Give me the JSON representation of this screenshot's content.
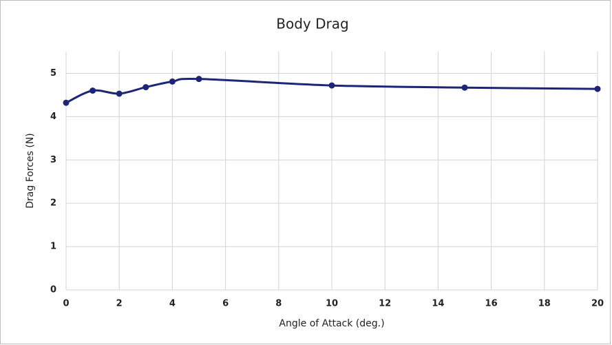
{
  "chart_data": {
    "type": "scatter",
    "title": "Body Drag",
    "x_label": "Angle of Attack (deg.)",
    "y_label": "Drag Forces (N)",
    "series": [
      {
        "name": "Body Drag",
        "color": "#1c2577",
        "x": [
          0,
          1,
          2,
          3,
          4,
          5,
          10,
          15,
          20
        ],
        "values": [
          4.32,
          4.6,
          4.53,
          4.68,
          4.81,
          4.87,
          4.72,
          4.67,
          4.64
        ]
      }
    ],
    "xlim": [
      0,
      20
    ],
    "xticks": [
      0,
      2,
      4,
      6,
      8,
      10,
      12,
      14,
      16,
      18,
      20
    ],
    "ylim": [
      0,
      5.5
    ],
    "yticks": [
      0,
      1,
      2,
      3,
      4,
      5
    ],
    "grid": true,
    "smooth": true
  }
}
